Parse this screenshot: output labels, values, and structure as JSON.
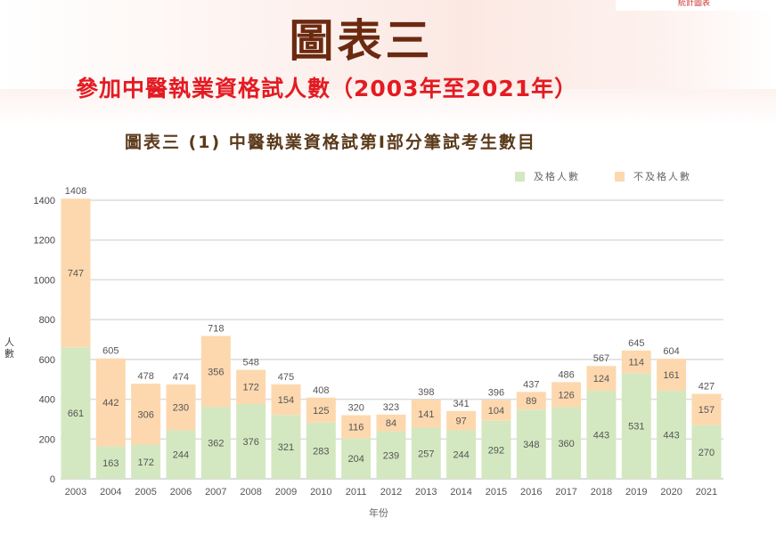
{
  "header": {
    "corner_label": "統計圖表",
    "main_title": "圖表三",
    "subtitle": "參加中醫執業資格試人數（2003年至2021年）"
  },
  "chart_data": {
    "type": "bar",
    "stacked": true,
    "title": "圖表三 (1) 中醫執業資格試第I部分筆試考生數目",
    "xlabel": "年份",
    "ylabel": "人數",
    "ylim": [
      0,
      1400
    ],
    "yticks": [
      0,
      200,
      400,
      600,
      800,
      1000,
      1200,
      1400
    ],
    "grid": true,
    "legend_position": "top-right",
    "categories": [
      "2003",
      "2004",
      "2005",
      "2006",
      "2007",
      "2008",
      "2009",
      "2010",
      "2011",
      "2012",
      "2013",
      "2014",
      "2015",
      "2016",
      "2017",
      "2018",
      "2019",
      "2020",
      "2021"
    ],
    "series": [
      {
        "name": "及格人數",
        "color": "#d3e8c0",
        "values": [
          661,
          163,
          172,
          244,
          362,
          376,
          321,
          283,
          204,
          239,
          257,
          244,
          292,
          348,
          360,
          443,
          531,
          443,
          270
        ]
      },
      {
        "name": "不及格人數",
        "color": "#fdd8ae",
        "values": [
          747,
          442,
          306,
          230,
          356,
          172,
          154,
          125,
          116,
          84,
          141,
          97,
          104,
          89,
          126,
          124,
          114,
          161,
          157
        ]
      }
    ],
    "totals": [
      1408,
      605,
      478,
      474,
      718,
      548,
      475,
      408,
      320,
      323,
      398,
      341,
      396,
      437,
      486,
      567,
      645,
      604,
      427
    ]
  }
}
